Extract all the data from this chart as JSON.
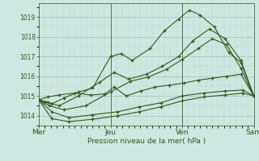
{
  "background_color": "#cde8e0",
  "plot_bg_color": "#cde8e0",
  "grid_major_color": "#a8c8c0",
  "grid_minor_color": "#b8d8d0",
  "line_color": "#2d5a1e",
  "xlabel": "Pression niveau de la mer( hPa )",
  "xtick_labels": [
    "Mer",
    "Jeu",
    "Ven",
    "Sam"
  ],
  "xtick_positions": [
    0,
    1,
    2,
    3
  ],
  "ylim": [
    1013.5,
    1019.7
  ],
  "yticks": [
    1014,
    1015,
    1016,
    1017,
    1018,
    1019
  ],
  "lines": [
    {
      "x": [
        0.0,
        0.08,
        0.18,
        0.35,
        0.55,
        0.75,
        1.0,
        1.15,
        1.3,
        1.55,
        1.75,
        1.95,
        2.1,
        2.25,
        2.45,
        2.65,
        2.82,
        3.0
      ],
      "y": [
        1014.8,
        1014.7,
        1014.6,
        1014.9,
        1015.2,
        1015.4,
        1017.0,
        1017.15,
        1016.8,
        1017.4,
        1018.3,
        1018.9,
        1019.35,
        1019.1,
        1018.5,
        1017.2,
        1016.7,
        1015.0
      ]
    },
    {
      "x": [
        0.0,
        0.12,
        0.28,
        0.55,
        0.85,
        1.05,
        1.25,
        1.5,
        1.72,
        1.95,
        2.15,
        2.38,
        2.6,
        2.82,
        3.0
      ],
      "y": [
        1014.8,
        1014.7,
        1014.5,
        1015.0,
        1015.7,
        1016.2,
        1015.85,
        1016.1,
        1016.5,
        1017.0,
        1017.8,
        1018.4,
        1017.9,
        1016.8,
        1015.0
      ]
    },
    {
      "x": [
        0.0,
        0.15,
        0.35,
        0.65,
        1.0,
        1.28,
        1.52,
        1.78,
        2.0,
        2.22,
        2.42,
        2.62,
        2.82,
        3.0
      ],
      "y": [
        1014.8,
        1014.5,
        1014.3,
        1014.5,
        1015.2,
        1015.75,
        1015.95,
        1016.35,
        1016.85,
        1017.4,
        1017.9,
        1017.6,
        1016.4,
        1015.0
      ]
    },
    {
      "x": [
        0.0,
        0.18,
        0.42,
        0.75,
        1.1,
        1.4,
        1.7,
        2.0,
        2.3,
        2.6,
        2.85,
        3.0
      ],
      "y": [
        1014.8,
        1014.2,
        1013.9,
        1014.05,
        1014.2,
        1014.45,
        1014.65,
        1015.0,
        1015.15,
        1015.25,
        1015.3,
        1015.0
      ]
    },
    {
      "x": [
        0.0,
        0.18,
        0.42,
        0.75,
        1.1,
        1.4,
        1.7,
        2.0,
        2.3,
        2.6,
        2.85,
        3.0
      ],
      "y": [
        1014.8,
        1013.85,
        1013.7,
        1013.82,
        1014.0,
        1014.2,
        1014.45,
        1014.75,
        1014.95,
        1015.05,
        1015.15,
        1015.0
      ]
    },
    {
      "x": [
        0.0,
        0.12,
        0.28,
        0.5,
        0.72,
        0.92,
        1.05,
        1.22,
        1.42,
        1.62,
        1.82,
        2.02,
        2.22,
        2.42,
        2.62,
        2.82,
        3.0
      ],
      "y": [
        1014.8,
        1014.95,
        1015.05,
        1015.15,
        1015.05,
        1015.1,
        1015.45,
        1015.0,
        1015.25,
        1015.45,
        1015.55,
        1015.65,
        1015.8,
        1015.9,
        1016.0,
        1016.1,
        1015.0
      ]
    }
  ]
}
